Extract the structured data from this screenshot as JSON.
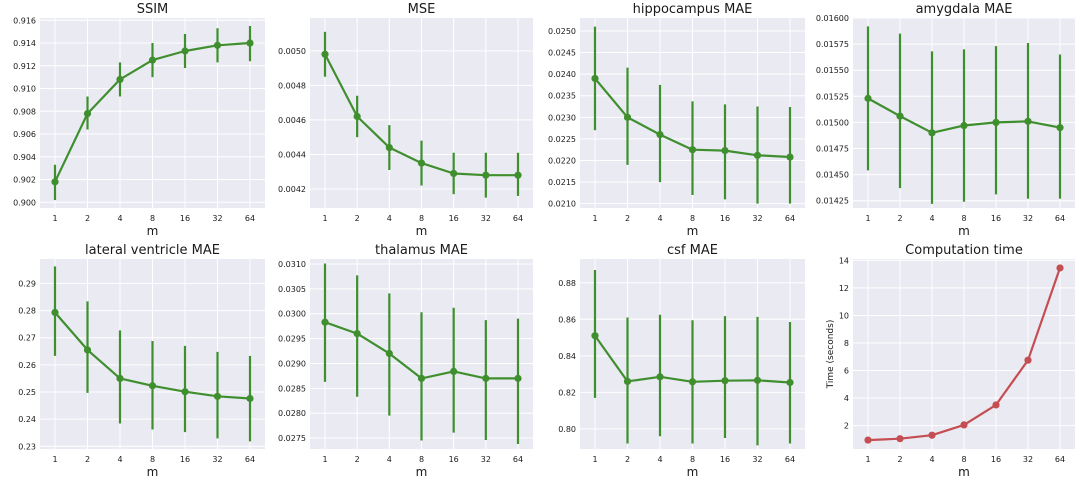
{
  "colors": {
    "green": "#3f8f2f",
    "red": "#c44e52",
    "panel_bg": "#eaeaf2"
  },
  "chart_data": [
    {
      "type": "line",
      "title": "SSIM",
      "xlabel": "m",
      "ylabel": "",
      "categories": [
        "1",
        "2",
        "4",
        "8",
        "16",
        "32",
        "64"
      ],
      "values": [
        0.9018,
        0.9078,
        0.9108,
        0.9125,
        0.9133,
        0.9138,
        0.914
      ],
      "err_low": [
        0.9002,
        0.9064,
        0.9093,
        0.911,
        0.9118,
        0.9123,
        0.9124
      ],
      "err_high": [
        0.9033,
        0.9093,
        0.9123,
        0.914,
        0.9148,
        0.9153,
        0.9155
      ],
      "ylim": [
        0.8995,
        0.9162
      ],
      "yticks": [
        0.9,
        0.902,
        0.904,
        0.906,
        0.908,
        0.91,
        0.912,
        0.914,
        0.916
      ],
      "ytick_labels": [
        "0.900",
        "0.902",
        "0.904",
        "0.906",
        "0.908",
        "0.910",
        "0.912",
        "0.914",
        "0.916"
      ],
      "color": "green"
    },
    {
      "type": "line",
      "title": "MSE",
      "xlabel": "m",
      "ylabel": "",
      "categories": [
        "1",
        "2",
        "4",
        "8",
        "16",
        "32",
        "64"
      ],
      "values": [
        0.00498,
        0.00462,
        0.00444,
        0.00435,
        0.00429,
        0.00428,
        0.00428
      ],
      "err_low": [
        0.00485,
        0.0045,
        0.00431,
        0.00422,
        0.00417,
        0.00415,
        0.00416
      ],
      "err_high": [
        0.00511,
        0.00474,
        0.00457,
        0.00448,
        0.00441,
        0.00441,
        0.00441
      ],
      "ylim": [
        0.00409,
        0.00519
      ],
      "yticks": [
        0.0042,
        0.0044,
        0.0046,
        0.0048,
        0.005
      ],
      "ytick_labels": [
        "0.0042",
        "0.0044",
        "0.0046",
        "0.0048",
        "0.0050"
      ],
      "color": "green"
    },
    {
      "type": "line",
      "title": "hippocampus MAE",
      "xlabel": "m",
      "ylabel": "",
      "categories": [
        "1",
        "2",
        "4",
        "8",
        "16",
        "32",
        "64"
      ],
      "values": [
        0.0239,
        0.023,
        0.0226,
        0.02225,
        0.02223,
        0.02212,
        0.02208
      ],
      "err_low": [
        0.0227,
        0.0219,
        0.0215,
        0.0212,
        0.0211,
        0.021,
        0.021
      ],
      "err_high": [
        0.0251,
        0.02415,
        0.02375,
        0.02337,
        0.0233,
        0.02325,
        0.02324
      ],
      "ylim": [
        0.0209,
        0.0253
      ],
      "yticks": [
        0.021,
        0.0215,
        0.022,
        0.0225,
        0.023,
        0.0235,
        0.024,
        0.0245,
        0.025
      ],
      "ytick_labels": [
        "0.0210",
        "0.0215",
        "0.0220",
        "0.0225",
        "0.0230",
        "0.0235",
        "0.0240",
        "0.0245",
        "0.0250"
      ],
      "color": "green"
    },
    {
      "type": "line",
      "title": "amygdala MAE",
      "xlabel": "m",
      "ylabel": "",
      "categories": [
        "1",
        "2",
        "4",
        "8",
        "16",
        "32",
        "64"
      ],
      "values": [
        0.01523,
        0.01506,
        0.0149,
        0.01497,
        0.015,
        0.01501,
        0.01495
      ],
      "err_low": [
        0.01454,
        0.01437,
        0.01422,
        0.01424,
        0.01431,
        0.01427,
        0.01427
      ],
      "err_high": [
        0.01592,
        0.01585,
        0.01568,
        0.0157,
        0.01573,
        0.01576,
        0.01565
      ],
      "ylim": [
        0.01418,
        0.016
      ],
      "yticks": [
        0.01425,
        0.0145,
        0.01475,
        0.015,
        0.01525,
        0.0155,
        0.01575,
        0.016
      ],
      "ytick_labels": [
        "0.01425",
        "0.01450",
        "0.01475",
        "0.01500",
        "0.01525",
        "0.01550",
        "0.01575",
        "0.01600"
      ],
      "color": "green"
    },
    {
      "type": "line",
      "title": "lateral ventricle MAE",
      "xlabel": "m",
      "ylabel": "",
      "categories": [
        "1",
        "2",
        "4",
        "8",
        "16",
        "32",
        "64"
      ],
      "values": [
        0.2793,
        0.2655,
        0.255,
        0.2523,
        0.2501,
        0.2484,
        0.2476
      ],
      "err_low": [
        0.2633,
        0.2497,
        0.2384,
        0.2362,
        0.2352,
        0.2329,
        0.2318
      ],
      "err_high": [
        0.2963,
        0.2834,
        0.2727,
        0.2688,
        0.267,
        0.2648,
        0.2633
      ],
      "ylim": [
        0.229,
        0.299
      ],
      "yticks": [
        0.23,
        0.24,
        0.25,
        0.26,
        0.27,
        0.28,
        0.29
      ],
      "ytick_labels": [
        "0.23",
        "0.24",
        "0.25",
        "0.26",
        "0.27",
        "0.28",
        "0.29"
      ],
      "color": "green"
    },
    {
      "type": "line",
      "title": "thalamus MAE",
      "xlabel": "m",
      "ylabel": "",
      "categories": [
        "1",
        "2",
        "4",
        "8",
        "16",
        "32",
        "64"
      ],
      "values": [
        0.02983,
        0.0296,
        0.0292,
        0.0287,
        0.02884,
        0.0287,
        0.0287
      ],
      "err_low": [
        0.02863,
        0.02833,
        0.02795,
        0.02745,
        0.02761,
        0.02746,
        0.02738
      ],
      "err_high": [
        0.03101,
        0.03077,
        0.03041,
        0.03003,
        0.03012,
        0.02987,
        0.0299
      ],
      "ylim": [
        0.02728,
        0.0311
      ],
      "yticks": [
        0.0275,
        0.028,
        0.0285,
        0.029,
        0.0295,
        0.03,
        0.0305,
        0.031
      ],
      "ytick_labels": [
        "0.0275",
        "0.0280",
        "0.0285",
        "0.0290",
        "0.0295",
        "0.0300",
        "0.0305",
        "0.0310"
      ],
      "color": "green"
    },
    {
      "type": "line",
      "title": "csf MAE",
      "xlabel": "m",
      "ylabel": "",
      "categories": [
        "1",
        "2",
        "4",
        "8",
        "16",
        "32",
        "64"
      ],
      "values": [
        0.851,
        0.826,
        0.8285,
        0.8258,
        0.8264,
        0.8266,
        0.8254
      ],
      "err_low": [
        0.817,
        0.792,
        0.796,
        0.792,
        0.795,
        0.791,
        0.792
      ],
      "err_high": [
        0.887,
        0.861,
        0.8625,
        0.8595,
        0.8617,
        0.8613,
        0.8585
      ],
      "ylim": [
        0.789,
        0.893
      ],
      "yticks": [
        0.8,
        0.82,
        0.84,
        0.86,
        0.88
      ],
      "ytick_labels": [
        "0.80",
        "0.82",
        "0.84",
        "0.86",
        "0.88"
      ],
      "color": "green"
    },
    {
      "type": "line",
      "title": "Computation time",
      "xlabel": "m",
      "ylabel": "Time (seconds)",
      "categories": [
        "1",
        "2",
        "4",
        "8",
        "16",
        "32",
        "64"
      ],
      "values": [
        0.95,
        1.05,
        1.3,
        2.05,
        3.5,
        6.75,
        13.45
      ],
      "ylim": [
        0.3,
        14.1
      ],
      "yticks": [
        2,
        4,
        6,
        8,
        10,
        12,
        14
      ],
      "ytick_labels": [
        "2",
        "4",
        "6",
        "8",
        "10",
        "12",
        "14"
      ],
      "color": "red"
    }
  ]
}
